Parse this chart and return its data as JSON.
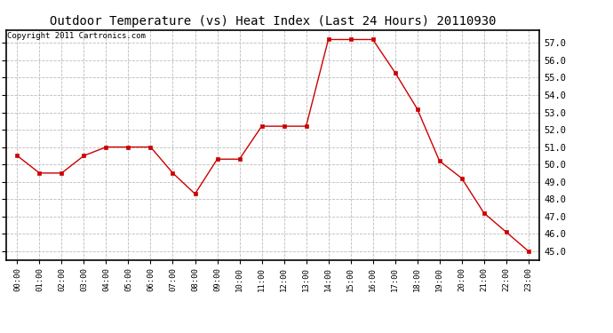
{
  "title": "Outdoor Temperature (vs) Heat Index (Last 24 Hours) 20110930",
  "copyright_text": "Copyright 2011 Cartronics.com",
  "x_labels": [
    "00:00",
    "01:00",
    "02:00",
    "03:00",
    "04:00",
    "05:00",
    "06:00",
    "07:00",
    "08:00",
    "09:00",
    "10:00",
    "11:00",
    "12:00",
    "13:00",
    "14:00",
    "15:00",
    "16:00",
    "17:00",
    "18:00",
    "19:00",
    "20:00",
    "21:00",
    "22:00",
    "23:00"
  ],
  "y_values": [
    50.5,
    49.5,
    49.5,
    50.5,
    51.0,
    51.0,
    51.0,
    49.5,
    48.3,
    50.3,
    50.3,
    52.2,
    52.2,
    52.2,
    57.2,
    57.2,
    57.2,
    55.3,
    53.2,
    50.2,
    49.2,
    47.2,
    46.1,
    45.0
  ],
  "ylim_min": 44.5,
  "ylim_max": 57.75,
  "ytick_values": [
    45.0,
    46.0,
    47.0,
    48.0,
    49.0,
    50.0,
    51.0,
    52.0,
    53.0,
    54.0,
    55.0,
    56.0,
    57.0
  ],
  "line_color": "#cc0000",
  "marker": "s",
  "marker_size": 3,
  "grid_color": "#bbbbbb",
  "grid_style": "--",
  "background_color": "#ffffff",
  "title_fontsize": 10,
  "copyright_fontsize": 6.5
}
